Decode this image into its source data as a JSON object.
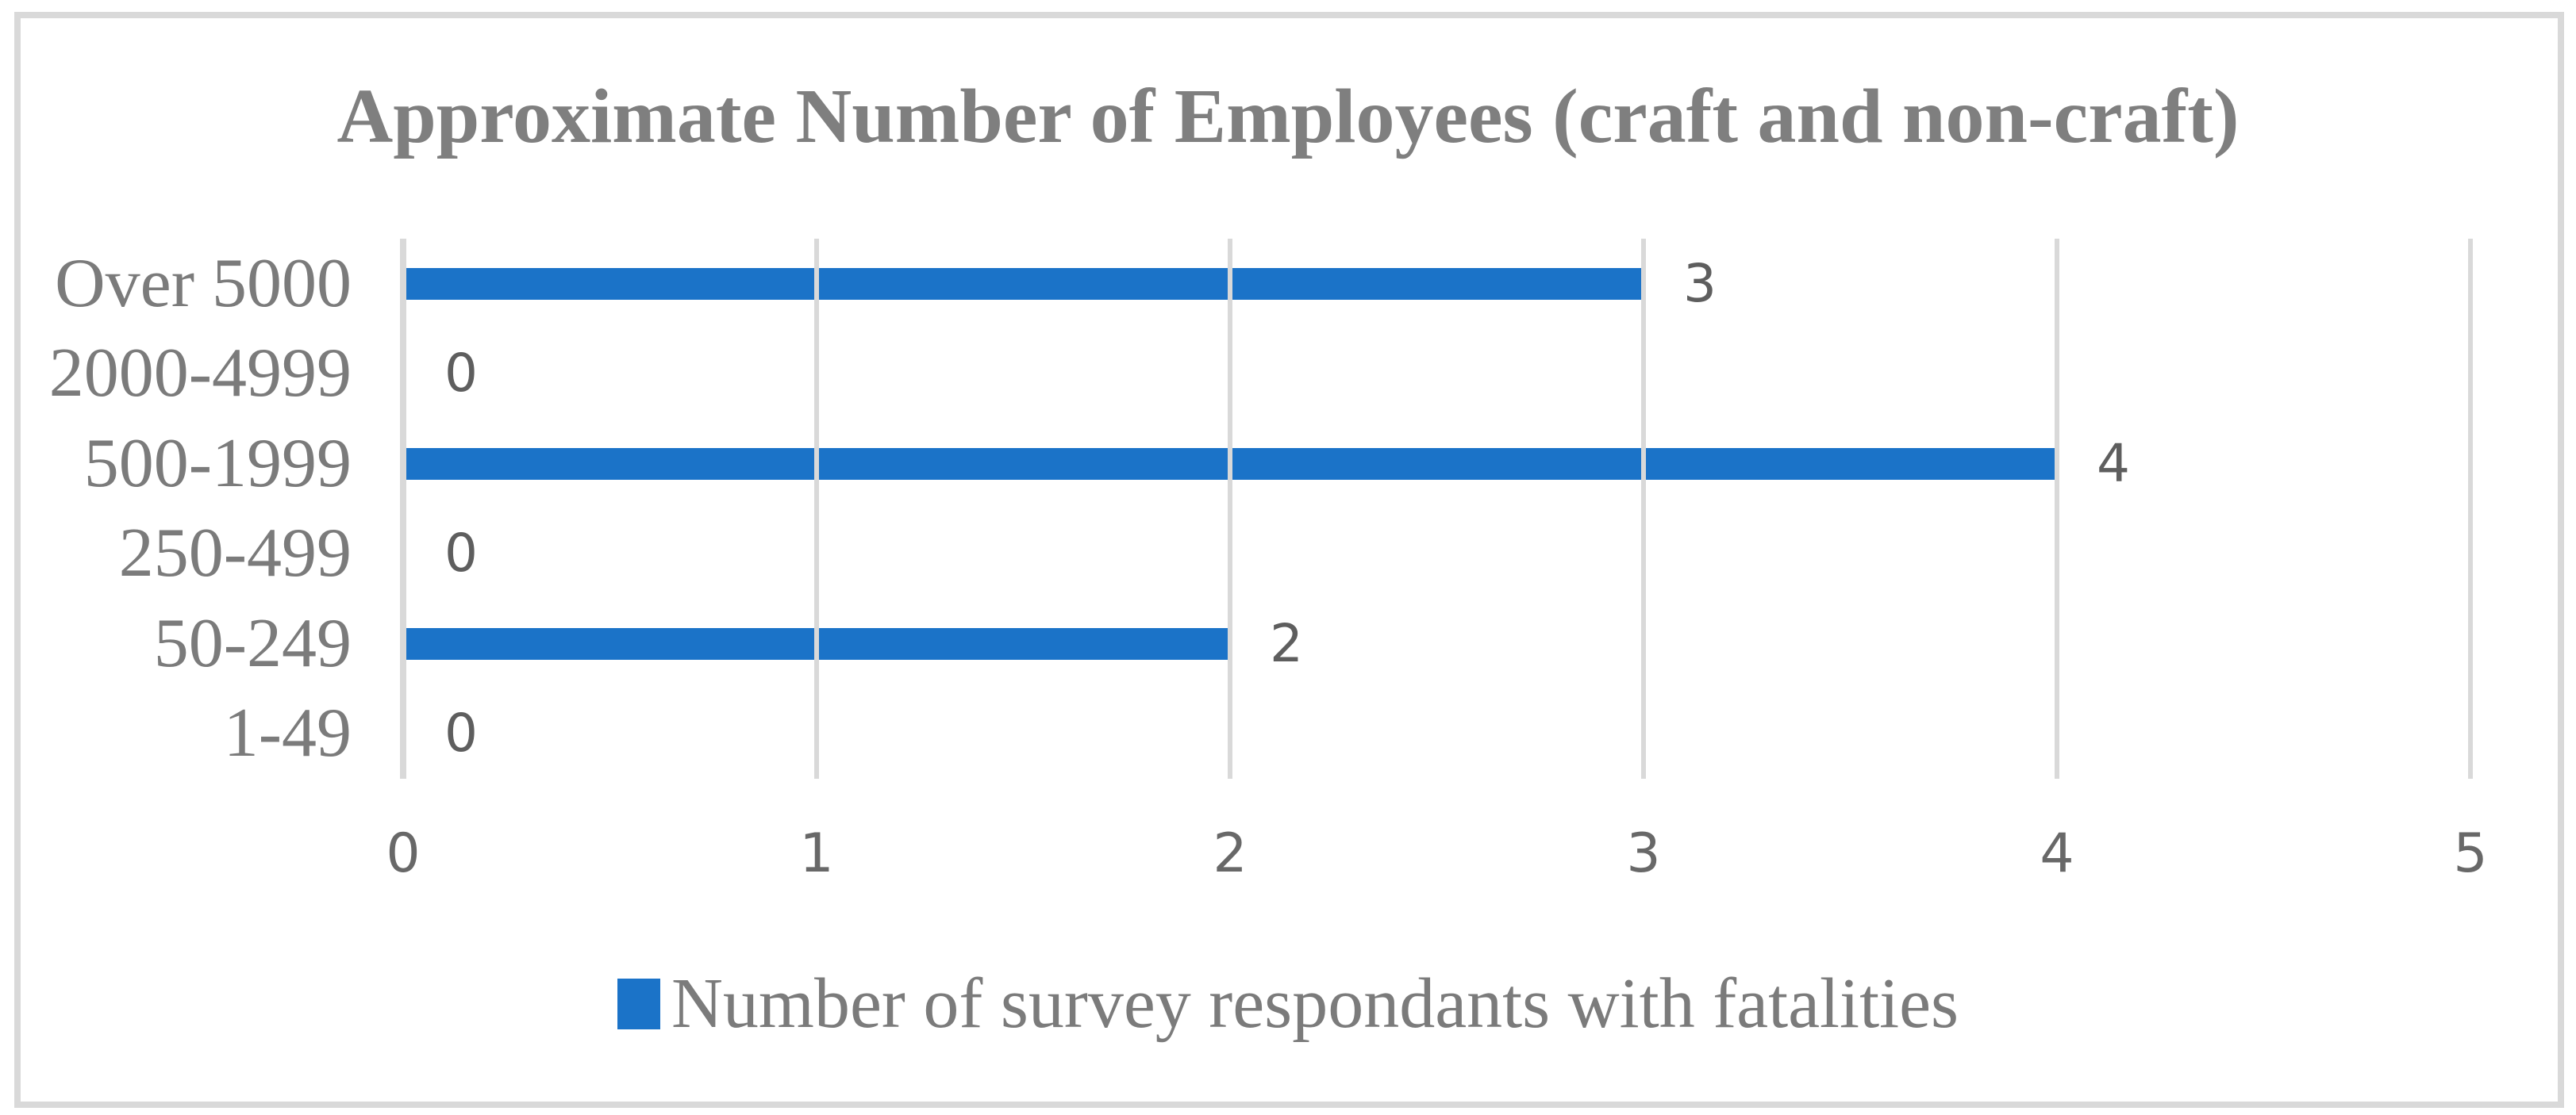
{
  "chart_data": {
    "type": "bar",
    "orientation": "horizontal",
    "title": "Approximate Number of Employees (craft and non-craft)",
    "categories": [
      "Over 5000",
      "2000-4999",
      "500-1999",
      "250-499",
      "50-249",
      "1-49"
    ],
    "series": [
      {
        "name": "Number of survey respondants with fatalities",
        "values": [
          3,
          0,
          4,
          0,
          2,
          0
        ]
      }
    ],
    "data_labels_shown": true,
    "xlabel": "",
    "ylabel": "",
    "xlim": [
      0,
      5
    ],
    "x_ticks": [
      "0",
      "1",
      "2",
      "3",
      "4",
      "5"
    ],
    "grid": "vertical-major-on",
    "legend": {
      "position": "bottom",
      "entries": [
        "Number of survey respondants with fatalities"
      ]
    },
    "colors": {
      "bar": "#1B73C8",
      "gridline": "#D9D9D9",
      "axis_line": "#D9D9D9",
      "chart_border": "#D9D9D9",
      "background": "#FFFFFF",
      "title_text": "#7F7F7F",
      "category_text": "#7B7B7B",
      "tick_text": "#686868",
      "data_label_text": "#5E5E5E",
      "legend_text": "#7B7B7B"
    }
  }
}
